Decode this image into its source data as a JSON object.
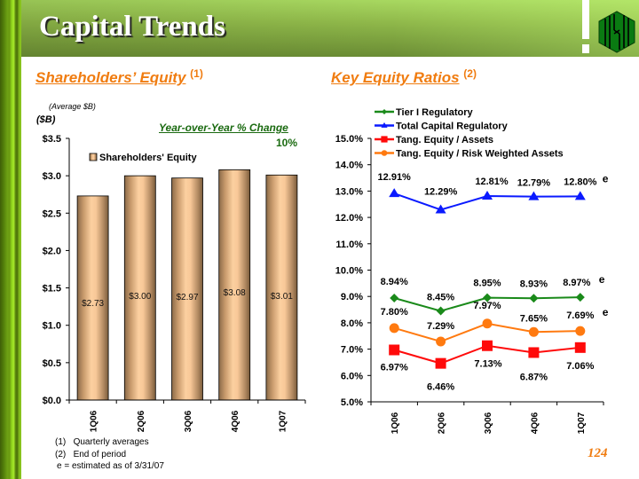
{
  "header": {
    "title": "Capital Trends"
  },
  "left_section": {
    "title": "Shareholders’ Equity",
    "footnote_ref": "(1)",
    "subtitle": "(Average $B)",
    "unit_label": "($B)",
    "yoy_label": "Year-over-Year % Change",
    "yoy_value": "10%"
  },
  "right_section": {
    "title": "Key Equity Ratios",
    "footnote_ref": "(2)"
  },
  "footnotes": [
    {
      "marker": "(1)",
      "text": "Quarterly averages"
    },
    {
      "marker": "(2)",
      "text": "End of period"
    },
    {
      "marker": "",
      "text": "e = estimated as of 3/31/07"
    }
  ],
  "page_number": "124",
  "colors": {
    "accent_orange": "#f07c10",
    "yoy_green": "#1a6a10",
    "bar_fill": "#f5c18e",
    "tier1": "#1a8a1a",
    "total_capital": "#0a1aff",
    "tang_assets": "#ff0a0a",
    "tang_rwa": "#ff7a10"
  },
  "chart_data": [
    {
      "type": "bar",
      "title": "Shareholders' Equity",
      "categories": [
        "1Q06",
        "2Q06",
        "3Q06",
        "4Q06",
        "1Q07"
      ],
      "series": [
        {
          "name": "Shareholders' Equity",
          "values": [
            2.73,
            3.0,
            2.97,
            3.08,
            3.01
          ]
        }
      ],
      "data_labels": [
        "$2.73",
        "$3.00",
        "$2.97",
        "$3.08",
        "$3.01"
      ],
      "ylabel": "($B)",
      "ylim": [
        0,
        3.5
      ],
      "yticks": [
        0,
        0.5,
        1.0,
        1.5,
        2.0,
        2.5,
        3.0,
        3.5
      ],
      "ytick_labels": [
        "$0.0",
        "$0.5",
        "$1.0",
        "$1.5",
        "$2.0",
        "$2.5",
        "$3.0",
        "$3.5"
      ],
      "legend": "top-center",
      "grid": false
    },
    {
      "type": "line",
      "title": "Key Equity Ratios",
      "categories": [
        "1Q06",
        "2Q06",
        "3Q06",
        "4Q06",
        "1Q07"
      ],
      "series": [
        {
          "name": "Tier I Regulatory",
          "values": [
            8.94,
            8.45,
            8.95,
            8.93,
            8.97
          ],
          "labels": [
            "8.94%",
            "8.45%",
            "8.95%",
            "8.93%",
            "8.97%"
          ],
          "marker": "diamond",
          "estimated_suffix": "e"
        },
        {
          "name": "Total Capital Regulatory",
          "values": [
            12.91,
            12.29,
            12.81,
            12.79,
            12.8
          ],
          "labels": [
            "12.91%",
            "12.29%",
            "12.81%",
            "12.79%",
            "12.80%"
          ],
          "marker": "triangle",
          "estimated_suffix": "e"
        },
        {
          "name": "Tang. Equity / Assets",
          "values": [
            6.97,
            6.46,
            7.13,
            6.87,
            7.06
          ],
          "labels": [
            "6.97%",
            "6.46%",
            "7.13%",
            "6.87%",
            "7.06%"
          ],
          "marker": "square",
          "estimated_suffix": ""
        },
        {
          "name": "Tang. Equity / Risk Weighted Assets",
          "values": [
            7.8,
            7.29,
            7.97,
            7.65,
            7.69
          ],
          "labels": [
            "7.80%",
            "7.29%",
            "7.97%",
            "7.65%",
            "7.69%"
          ],
          "marker": "circle",
          "estimated_suffix": "e"
        }
      ],
      "ylim": [
        5.0,
        15.0
      ],
      "yticks": [
        5,
        6,
        7,
        8,
        9,
        10,
        11,
        12,
        13,
        14,
        15
      ],
      "ytick_labels": [
        "5.0%",
        "6.0%",
        "7.0%",
        "8.0%",
        "9.0%",
        "10.0%",
        "11.0%",
        "12.0%",
        "13.0%",
        "14.0%",
        "15.0%"
      ],
      "legend": "top-center",
      "grid": false
    }
  ]
}
